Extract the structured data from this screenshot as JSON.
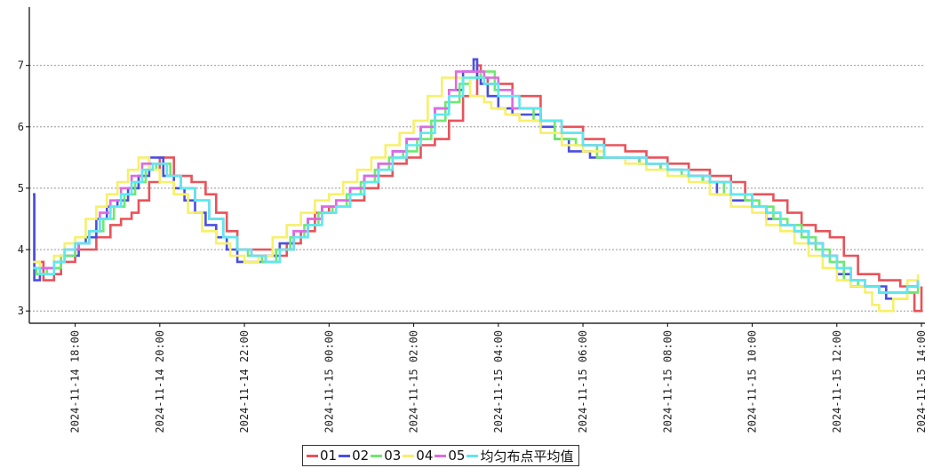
{
  "colors": {
    "s01": "#e8535a",
    "s02": "#4a4fe0",
    "s03": "#6fe86f",
    "s04": "#f7f06a",
    "s05": "#e06ae0",
    "avg": "#5fe8ef",
    "grid": "#888888",
    "axis": "#000000"
  },
  "chart_data": {
    "type": "line",
    "title": "",
    "xlabel": "",
    "ylabel": "",
    "ylim": [
      2.8,
      7.95
    ],
    "xlim": [
      "2024-11-14 16:55",
      "2024-11-15 14:05"
    ],
    "y_ticks": [
      "3",
      "4",
      "5",
      "6",
      "7"
    ],
    "x_ticks": [
      "2024-11-14 18:00",
      "2024-11-14 20:00",
      "2024-11-14 22:00",
      "2024-11-15 00:00",
      "2024-11-15 02:00",
      "2024-11-15 04:00",
      "2024-11-15 06:00",
      "2024-11-15 08:00",
      "2024-11-15 10:00",
      "2024-11-15 12:00",
      "2024-11-15 14:00"
    ],
    "grid": true,
    "step": true,
    "legend_position": "bottom-center",
    "series": [
      {
        "name": "01",
        "color_key": "s01",
        "x": [
          "2024-11-14 17:00",
          "2024-11-14 17:02",
          "2024-11-14 17:15",
          "2024-11-14 17:30",
          "2024-11-14 17:40",
          "2024-11-14 18:00",
          "2024-11-14 18:30",
          "2024-11-14 18:50",
          "2024-11-14 19:05",
          "2024-11-14 19:20",
          "2024-11-14 19:30",
          "2024-11-14 19:45",
          "2024-11-14 20:00",
          "2024-11-14 20:20",
          "2024-11-14 20:45",
          "2024-11-14 21:05",
          "2024-11-14 21:20",
          "2024-11-14 21:35",
          "2024-11-14 21:50",
          "2024-11-14 22:05",
          "2024-11-14 22:40",
          "2024-11-14 23:00",
          "2024-11-14 23:20",
          "2024-11-14 23:40",
          "2024-11-15 00:00",
          "2024-11-15 00:30",
          "2024-11-15 00:50",
          "2024-11-15 01:10",
          "2024-11-15 01:30",
          "2024-11-15 01:50",
          "2024-11-15 02:10",
          "2024-11-15 02:30",
          "2024-11-15 02:50",
          "2024-11-15 03:10",
          "2024-11-15 03:30",
          "2024-11-15 03:35",
          "2024-11-15 03:45",
          "2024-11-15 04:20",
          "2024-11-15 05:00",
          "2024-11-15 05:30",
          "2024-11-15 06:00",
          "2024-11-15 06:30",
          "2024-11-15 07:00",
          "2024-11-15 07:30",
          "2024-11-15 08:00",
          "2024-11-15 08:30",
          "2024-11-15 09:00",
          "2024-11-15 09:30",
          "2024-11-15 09:50",
          "2024-11-15 10:30",
          "2024-11-15 10:50",
          "2024-11-15 11:10",
          "2024-11-15 11:30",
          "2024-11-15 11:50",
          "2024-11-15 12:10",
          "2024-11-15 12:30",
          "2024-11-15 13:00",
          "2024-11-15 13:30",
          "2024-11-15 13:40",
          "2024-11-15 13:50",
          "2024-11-15 14:00"
        ],
        "y": [
          4.9,
          3.8,
          3.5,
          3.6,
          3.8,
          4.0,
          4.2,
          4.4,
          4.5,
          4.6,
          4.8,
          5.1,
          5.5,
          5.2,
          5.1,
          4.9,
          4.6,
          4.3,
          4.0,
          4.0,
          3.9,
          4.1,
          4.3,
          4.6,
          4.7,
          4.8,
          5.0,
          5.2,
          5.4,
          5.5,
          5.7,
          5.8,
          6.1,
          6.5,
          7.0,
          6.8,
          6.7,
          6.5,
          6.1,
          6.0,
          5.8,
          5.7,
          5.6,
          5.5,
          5.4,
          5.3,
          5.2,
          5.1,
          4.9,
          4.8,
          4.6,
          4.4,
          4.3,
          4.2,
          3.9,
          3.6,
          3.5,
          3.4,
          3.3,
          3.0,
          3.4
        ]
      },
      {
        "name": "02",
        "color_key": "s02",
        "x": [
          "2024-11-14 17:00",
          "2024-11-14 17:02",
          "2024-11-14 17:10",
          "2024-11-14 17:25",
          "2024-11-14 17:40",
          "2024-11-14 18:05",
          "2024-11-14 18:15",
          "2024-11-14 18:30",
          "2024-11-14 18:45",
          "2024-11-14 19:00",
          "2024-11-14 19:15",
          "2024-11-14 19:30",
          "2024-11-14 19:45",
          "2024-11-14 20:05",
          "2024-11-14 20:20",
          "2024-11-14 20:35",
          "2024-11-14 20:50",
          "2024-11-14 21:05",
          "2024-11-14 21:20",
          "2024-11-14 21:35",
          "2024-11-14 21:50",
          "2024-11-14 22:10",
          "2024-11-14 22:30",
          "2024-11-14 22:50",
          "2024-11-14 23:10",
          "2024-11-14 23:30",
          "2024-11-14 23:50",
          "2024-11-15 00:10",
          "2024-11-15 00:30",
          "2024-11-15 00:50",
          "2024-11-15 01:10",
          "2024-11-15 01:30",
          "2024-11-15 01:50",
          "2024-11-15 02:10",
          "2024-11-15 02:30",
          "2024-11-15 02:50",
          "2024-11-15 03:10",
          "2024-11-15 03:20",
          "2024-11-15 03:25",
          "2024-11-15 03:30",
          "2024-11-15 03:35",
          "2024-11-15 03:45",
          "2024-11-15 04:00",
          "2024-11-15 04:20",
          "2024-11-15 05:00",
          "2024-11-15 05:20",
          "2024-11-15 05:40",
          "2024-11-15 06:10",
          "2024-11-15 06:40",
          "2024-11-15 07:20",
          "2024-11-15 07:50",
          "2024-11-15 08:20",
          "2024-11-15 08:50",
          "2024-11-15 09:10",
          "2024-11-15 09:30",
          "2024-11-15 10:00",
          "2024-11-15 10:20",
          "2024-11-15 10:40",
          "2024-11-15 11:00",
          "2024-11-15 11:20",
          "2024-11-15 11:40",
          "2024-11-15 12:00",
          "2024-11-15 12:20",
          "2024-11-15 12:40",
          "2024-11-15 13:10",
          "2024-11-15 13:40",
          "2024-11-15 13:55"
        ],
        "y": [
          4.9,
          3.5,
          3.7,
          3.7,
          3.9,
          4.1,
          4.2,
          4.5,
          4.7,
          4.8,
          5.0,
          5.2,
          5.5,
          5.2,
          5.0,
          4.8,
          4.6,
          4.4,
          4.2,
          4.0,
          3.8,
          3.8,
          3.9,
          4.1,
          4.3,
          4.5,
          4.7,
          4.8,
          5.0,
          5.2,
          5.4,
          5.6,
          5.8,
          6.0,
          6.3,
          6.6,
          6.9,
          6.9,
          7.1,
          6.8,
          6.7,
          6.5,
          6.3,
          6.2,
          6.0,
          5.8,
          5.6,
          5.5,
          5.5,
          5.4,
          5.3,
          5.2,
          5.1,
          4.9,
          4.8,
          4.7,
          4.5,
          4.4,
          4.3,
          4.1,
          3.9,
          3.6,
          3.4,
          3.4,
          3.2,
          3.4,
          3.5
        ]
      },
      {
        "name": "03",
        "color_key": "s03",
        "x": [
          "2024-11-14 17:00",
          "2024-11-14 17:05",
          "2024-11-14 17:20",
          "2024-11-14 17:40",
          "2024-11-14 18:00",
          "2024-11-14 18:20",
          "2024-11-14 18:40",
          "2024-11-14 18:55",
          "2024-11-14 19:10",
          "2024-11-14 19:25",
          "2024-11-14 19:40",
          "2024-11-14 19:55",
          "2024-11-14 20:15",
          "2024-11-14 20:30",
          "2024-11-14 20:50",
          "2024-11-14 21:10",
          "2024-11-14 21:30",
          "2024-11-14 21:50",
          "2024-11-14 22:05",
          "2024-11-14 22:25",
          "2024-11-14 22:45",
          "2024-11-14 23:05",
          "2024-11-14 23:25",
          "2024-11-14 23:45",
          "2024-11-15 00:05",
          "2024-11-15 00:25",
          "2024-11-15 00:45",
          "2024-11-15 01:05",
          "2024-11-15 01:25",
          "2024-11-15 01:45",
          "2024-11-15 02:05",
          "2024-11-15 02:25",
          "2024-11-15 02:45",
          "2024-11-15 03:05",
          "2024-11-15 03:20",
          "2024-11-15 03:35",
          "2024-11-15 03:55",
          "2024-11-15 04:20",
          "2024-11-15 04:50",
          "2024-11-15 05:20",
          "2024-11-15 05:50",
          "2024-11-15 06:20",
          "2024-11-15 06:50",
          "2024-11-15 07:20",
          "2024-11-15 07:50",
          "2024-11-15 08:20",
          "2024-11-15 08:50",
          "2024-11-15 09:20",
          "2024-11-15 09:50",
          "2024-11-15 10:10",
          "2024-11-15 10:30",
          "2024-11-15 10:50",
          "2024-11-15 11:10",
          "2024-11-15 11:30",
          "2024-11-15 11:50",
          "2024-11-15 12:10",
          "2024-11-15 12:30",
          "2024-11-15 13:00",
          "2024-11-15 13:30",
          "2024-11-15 13:55"
        ],
        "y": [
          3.7,
          3.6,
          3.7,
          3.9,
          4.1,
          4.3,
          4.5,
          4.7,
          4.9,
          5.1,
          5.3,
          5.4,
          5.2,
          5.0,
          4.8,
          4.5,
          4.2,
          4.0,
          3.9,
          3.8,
          4.0,
          4.2,
          4.4,
          4.6,
          4.7,
          4.9,
          5.1,
          5.3,
          5.5,
          5.6,
          5.8,
          6.1,
          6.4,
          6.7,
          6.8,
          6.9,
          6.6,
          6.3,
          6.1,
          5.8,
          5.7,
          5.5,
          5.5,
          5.4,
          5.3,
          5.2,
          5.1,
          4.9,
          4.8,
          4.7,
          4.5,
          4.4,
          4.2,
          4.0,
          3.8,
          3.5,
          3.4,
          3.3,
          3.3,
          3.5
        ]
      },
      {
        "name": "04",
        "color_key": "s04",
        "x": [
          "2024-11-14 17:00",
          "2024-11-14 17:10",
          "2024-11-14 17:30",
          "2024-11-14 17:45",
          "2024-11-14 18:00",
          "2024-11-14 18:15",
          "2024-11-14 18:30",
          "2024-11-14 18:45",
          "2024-11-14 19:00",
          "2024-11-14 19:15",
          "2024-11-14 19:30",
          "2024-11-14 19:45",
          "2024-11-14 20:00",
          "2024-11-14 20:20",
          "2024-11-14 20:40",
          "2024-11-14 21:00",
          "2024-11-14 21:20",
          "2024-11-14 21:40",
          "2024-11-14 22:00",
          "2024-11-14 22:20",
          "2024-11-14 22:40",
          "2024-11-14 23:00",
          "2024-11-14 23:20",
          "2024-11-14 23:40",
          "2024-11-15 00:00",
          "2024-11-15 00:20",
          "2024-11-15 00:40",
          "2024-11-15 01:00",
          "2024-11-15 01:20",
          "2024-11-15 01:40",
          "2024-11-15 02:00",
          "2024-11-15 02:20",
          "2024-11-15 02:40",
          "2024-11-15 03:00",
          "2024-11-15 03:20",
          "2024-11-15 03:40",
          "2024-11-15 03:50",
          "2024-11-15 04:10",
          "2024-11-15 04:30",
          "2024-11-15 05:00",
          "2024-11-15 05:30",
          "2024-11-15 06:00",
          "2024-11-15 06:30",
          "2024-11-15 07:00",
          "2024-11-15 07:30",
          "2024-11-15 08:00",
          "2024-11-15 08:30",
          "2024-11-15 09:00",
          "2024-11-15 09:30",
          "2024-11-15 10:00",
          "2024-11-15 10:20",
          "2024-11-15 10:40",
          "2024-11-15 11:00",
          "2024-11-15 11:20",
          "2024-11-15 11:40",
          "2024-11-15 12:00",
          "2024-11-15 12:20",
          "2024-11-15 12:40",
          "2024-11-15 12:50",
          "2024-11-15 13:00",
          "2024-11-15 13:20",
          "2024-11-15 13:40",
          "2024-11-15 13:55"
        ],
        "y": [
          3.8,
          3.6,
          3.9,
          4.1,
          4.2,
          4.5,
          4.7,
          4.9,
          5.1,
          5.3,
          5.5,
          5.3,
          5.1,
          4.9,
          4.6,
          4.3,
          4.1,
          3.9,
          3.8,
          3.9,
          4.2,
          4.4,
          4.6,
          4.8,
          4.9,
          5.1,
          5.3,
          5.5,
          5.7,
          5.9,
          6.1,
          6.5,
          6.8,
          6.8,
          6.5,
          6.4,
          6.3,
          6.2,
          6.1,
          5.9,
          5.7,
          5.6,
          5.5,
          5.4,
          5.3,
          5.2,
          5.1,
          4.9,
          4.7,
          4.6,
          4.4,
          4.3,
          4.1,
          3.9,
          3.7,
          3.5,
          3.4,
          3.3,
          3.1,
          3.0,
          3.2,
          3.5,
          3.6
        ]
      },
      {
        "name": "05",
        "color_key": "s05",
        "x": [
          "2024-11-14 17:00",
          "2024-11-14 17:10",
          "2024-11-14 17:30",
          "2024-11-14 17:45",
          "2024-11-14 18:05",
          "2024-11-14 18:20",
          "2024-11-14 18:35",
          "2024-11-14 18:50",
          "2024-11-14 19:05",
          "2024-11-14 19:20",
          "2024-11-14 19:35",
          "2024-11-14 19:50",
          "2024-11-14 20:10",
          "2024-11-14 20:30",
          "2024-11-14 20:50",
          "2024-11-14 21:10",
          "2024-11-14 21:30",
          "2024-11-14 21:50",
          "2024-11-14 22:10",
          "2024-11-14 22:30",
          "2024-11-14 22:50",
          "2024-11-14 23:10",
          "2024-11-14 23:30",
          "2024-11-14 23:50",
          "2024-11-15 00:10",
          "2024-11-15 00:30",
          "2024-11-15 00:50",
          "2024-11-15 01:10",
          "2024-11-15 01:30",
          "2024-11-15 01:50",
          "2024-11-15 02:10",
          "2024-11-15 02:30",
          "2024-11-15 02:50",
          "2024-11-15 03:00",
          "2024-11-15 03:20",
          "2024-11-15 03:40",
          "2024-11-15 04:00",
          "2024-11-15 04:20",
          "2024-11-15 05:00",
          "2024-11-15 05:30",
          "2024-11-15 06:00",
          "2024-11-15 06:30",
          "2024-11-15 07:00",
          "2024-11-15 07:30",
          "2024-11-15 08:00",
          "2024-11-15 08:30",
          "2024-11-15 09:00",
          "2024-11-15 09:30",
          "2024-11-15 10:00",
          "2024-11-15 10:20",
          "2024-11-15 10:40",
          "2024-11-15 11:00",
          "2024-11-15 11:20",
          "2024-11-15 11:40",
          "2024-11-15 12:00",
          "2024-11-15 12:20",
          "2024-11-15 12:40",
          "2024-11-15 13:00",
          "2024-11-15 13:20",
          "2024-11-15 13:40",
          "2024-11-15 13:55"
        ],
        "y": [
          3.7,
          3.7,
          3.8,
          4.0,
          4.1,
          4.3,
          4.6,
          4.8,
          5.0,
          5.2,
          5.4,
          5.4,
          5.2,
          5.0,
          4.8,
          4.5,
          4.2,
          4.0,
          3.9,
          3.8,
          4.0,
          4.3,
          4.5,
          4.7,
          4.8,
          5.0,
          5.2,
          5.4,
          5.6,
          5.8,
          6.0,
          6.3,
          6.6,
          6.9,
          6.9,
          6.8,
          6.6,
          6.3,
          6.1,
          5.9,
          5.7,
          5.5,
          5.5,
          5.4,
          5.3,
          5.2,
          5.1,
          4.9,
          4.7,
          4.6,
          4.4,
          4.3,
          4.1,
          3.9,
          3.7,
          3.5,
          3.4,
          3.3,
          3.3,
          3.4,
          3.5
        ]
      },
      {
        "name": "均匀布点平均值",
        "color_key": "avg",
        "x": [
          "2024-11-14 17:00",
          "2024-11-14 17:10",
          "2024-11-14 17:30",
          "2024-11-14 17:45",
          "2024-11-14 18:00",
          "2024-11-14 18:20",
          "2024-11-14 18:35",
          "2024-11-14 18:50",
          "2024-11-14 19:05",
          "2024-11-14 19:20",
          "2024-11-14 19:35",
          "2024-11-14 19:50",
          "2024-11-14 20:10",
          "2024-11-14 20:30",
          "2024-11-14 20:50",
          "2024-11-14 21:10",
          "2024-11-14 21:30",
          "2024-11-14 21:50",
          "2024-11-14 22:10",
          "2024-11-14 22:30",
          "2024-11-14 22:50",
          "2024-11-14 23:10",
          "2024-11-14 23:30",
          "2024-11-14 23:50",
          "2024-11-15 00:10",
          "2024-11-15 00:30",
          "2024-11-15 00:50",
          "2024-11-15 01:10",
          "2024-11-15 01:30",
          "2024-11-15 01:50",
          "2024-11-15 02:10",
          "2024-11-15 02:30",
          "2024-11-15 02:50",
          "2024-11-15 03:10",
          "2024-11-15 03:25",
          "2024-11-15 03:40",
          "2024-11-15 04:00",
          "2024-11-15 04:30",
          "2024-11-15 05:00",
          "2024-11-15 05:30",
          "2024-11-15 06:00",
          "2024-11-15 06:30",
          "2024-11-15 07:00",
          "2024-11-15 07:30",
          "2024-11-15 08:00",
          "2024-11-15 08:30",
          "2024-11-15 09:00",
          "2024-11-15 09:30",
          "2024-11-15 10:00",
          "2024-11-15 10:20",
          "2024-11-15 10:40",
          "2024-11-15 11:00",
          "2024-11-15 11:20",
          "2024-11-15 11:40",
          "2024-11-15 12:00",
          "2024-11-15 12:20",
          "2024-11-15 12:40",
          "2024-11-15 13:00",
          "2024-11-15 13:20",
          "2024-11-15 13:40",
          "2024-11-15 13:55"
        ],
        "y": [
          3.7,
          3.6,
          3.8,
          4.0,
          4.1,
          4.3,
          4.5,
          4.7,
          4.9,
          5.1,
          5.3,
          5.4,
          5.2,
          5.0,
          4.8,
          4.5,
          4.2,
          4.0,
          3.9,
          3.8,
          4.0,
          4.2,
          4.4,
          4.6,
          4.7,
          4.9,
          5.1,
          5.3,
          5.5,
          5.7,
          5.9,
          6.2,
          6.5,
          6.8,
          6.8,
          6.7,
          6.5,
          6.3,
          6.1,
          5.9,
          5.7,
          5.5,
          5.5,
          5.4,
          5.3,
          5.2,
          5.1,
          4.9,
          4.7,
          4.6,
          4.4,
          4.3,
          4.1,
          3.9,
          3.7,
          3.5,
          3.4,
          3.3,
          3.3,
          3.4,
          3.5
        ]
      }
    ]
  },
  "legend": {
    "items": [
      {
        "label": "01",
        "color_key": "s01"
      },
      {
        "label": "02",
        "color_key": "s02"
      },
      {
        "label": "03",
        "color_key": "s03"
      },
      {
        "label": "04",
        "color_key": "s04"
      },
      {
        "label": "05",
        "color_key": "s05"
      },
      {
        "label": "均匀布点平均值",
        "color_key": "avg"
      }
    ]
  }
}
